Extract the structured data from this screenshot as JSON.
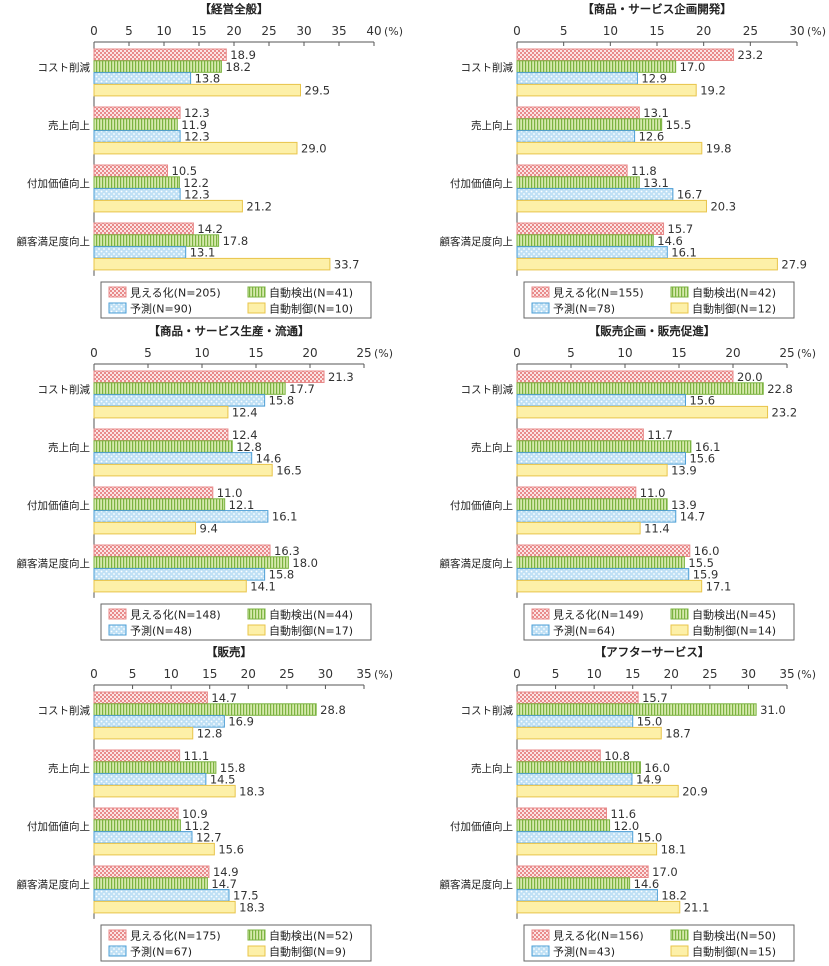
{
  "series_styles": {
    "mieruka": {
      "color": "#e88a8a",
      "fill": "#fbe4e4"
    },
    "kenshutsu": {
      "color": "#7bb340",
      "fill": "#d6e9ad"
    },
    "yosoku": {
      "color": "#4e9fd6",
      "fill": "#bfe0f5"
    },
    "seigyo": {
      "color": "#e8c44a",
      "fill": "#fdf0a8"
    }
  },
  "chart_data": [
    {
      "type": "bar",
      "title": "【経営全般】",
      "unit": "(%)",
      "xlim": [
        0,
        40
      ],
      "ticks": [
        0,
        5,
        10,
        15,
        20,
        25,
        30,
        35,
        40
      ],
      "categories": [
        "コスト削減",
        "売上向上",
        "付加価値向上",
        "顧客満足度向上"
      ],
      "series": [
        {
          "name": "見える化",
          "key": "mieruka",
          "n": "(N=205)",
          "values": [
            18.9,
            12.3,
            10.5,
            14.2
          ]
        },
        {
          "name": "自動検出",
          "key": "kenshutsu",
          "n": "(N=41)",
          "values": [
            18.2,
            11.9,
            12.2,
            17.8
          ]
        },
        {
          "name": "予測",
          "key": "yosoku",
          "n": "(N=90)",
          "values": [
            13.8,
            12.3,
            12.3,
            13.1
          ]
        },
        {
          "name": "自動制御",
          "key": "seigyo",
          "n": "(N=10)",
          "values": [
            29.5,
            29.0,
            21.2,
            33.7
          ]
        }
      ]
    },
    {
      "type": "bar",
      "title": "【商品・サービス企画開発】",
      "unit": "(%)",
      "xlim": [
        0,
        30
      ],
      "ticks": [
        0,
        5,
        10,
        15,
        20,
        25,
        30
      ],
      "categories": [
        "コスト削減",
        "売上向上",
        "付加価値向上",
        "顧客満足度向上"
      ],
      "series": [
        {
          "name": "見える化",
          "key": "mieruka",
          "n": "(N=155)",
          "values": [
            23.2,
            13.1,
            11.8,
            15.7
          ]
        },
        {
          "name": "自動検出",
          "key": "kenshutsu",
          "n": "(N=42)",
          "values": [
            17.0,
            15.5,
            13.1,
            14.6
          ]
        },
        {
          "name": "予測",
          "key": "yosoku",
          "n": "(N=78)",
          "values": [
            12.9,
            12.6,
            16.7,
            16.1
          ]
        },
        {
          "name": "自動制御",
          "key": "seigyo",
          "n": "(N=12)",
          "values": [
            19.2,
            19.8,
            20.3,
            27.9
          ]
        }
      ]
    },
    {
      "type": "bar",
      "title": "【商品・サービス生産・流通】",
      "unit": "(%)",
      "xlim": [
        0,
        25
      ],
      "ticks": [
        0,
        5,
        10,
        15,
        20,
        25
      ],
      "categories": [
        "コスト削減",
        "売上向上",
        "付加価値向上",
        "顧客満足度向上"
      ],
      "series": [
        {
          "name": "見える化",
          "key": "mieruka",
          "n": "(N=148)",
          "values": [
            21.3,
            12.4,
            11.0,
            16.3
          ]
        },
        {
          "name": "自動検出",
          "key": "kenshutsu",
          "n": "(N=44)",
          "values": [
            17.7,
            12.8,
            12.1,
            18.0
          ]
        },
        {
          "name": "予測",
          "key": "yosoku",
          "n": "(N=48)",
          "values": [
            15.8,
            14.6,
            16.1,
            15.8
          ]
        },
        {
          "name": "自動制御",
          "key": "seigyo",
          "n": "(N=17)",
          "values": [
            12.4,
            16.5,
            9.4,
            14.1
          ]
        }
      ]
    },
    {
      "type": "bar",
      "title": "【販売企画・販売促進】",
      "unit": "(%)",
      "xlim": [
        0,
        25
      ],
      "ticks": [
        0,
        5,
        10,
        15,
        20,
        25
      ],
      "categories": [
        "コスト削減",
        "売上向上",
        "付加価値向上",
        "顧客満足度向上"
      ],
      "series": [
        {
          "name": "見える化",
          "key": "mieruka",
          "n": "(N=149)",
          "values": [
            20.0,
            11.7,
            11.0,
            16.0
          ]
        },
        {
          "name": "自動検出",
          "key": "kenshutsu",
          "n": "(N=45)",
          "values": [
            22.8,
            16.1,
            13.9,
            15.5
          ]
        },
        {
          "name": "予測",
          "key": "yosoku",
          "n": "(N=64)",
          "values": [
            15.6,
            15.6,
            14.7,
            15.9
          ]
        },
        {
          "name": "自動制御",
          "key": "seigyo",
          "n": "(N=14)",
          "values": [
            23.2,
            13.9,
            11.4,
            17.1
          ]
        }
      ]
    },
    {
      "type": "bar",
      "title": "【販売】",
      "unit": "(%)",
      "xlim": [
        0,
        35
      ],
      "ticks": [
        0,
        5,
        10,
        15,
        20,
        25,
        30,
        35
      ],
      "categories": [
        "コスト削減",
        "売上向上",
        "付加価値向上",
        "顧客満足度向上"
      ],
      "series": [
        {
          "name": "見える化",
          "key": "mieruka",
          "n": "(N=175)",
          "values": [
            14.7,
            11.1,
            10.9,
            14.9
          ]
        },
        {
          "name": "自動検出",
          "key": "kenshutsu",
          "n": "(N=52)",
          "values": [
            28.8,
            15.8,
            11.2,
            14.7
          ]
        },
        {
          "name": "予測",
          "key": "yosoku",
          "n": "(N=67)",
          "values": [
            16.9,
            14.5,
            12.7,
            17.5
          ]
        },
        {
          "name": "自動制御",
          "key": "seigyo",
          "n": "(N=9)",
          "values": [
            12.8,
            18.3,
            15.6,
            18.3
          ]
        }
      ]
    },
    {
      "type": "bar",
      "title": "【アフターサービス】",
      "unit": "(%)",
      "xlim": [
        0,
        35
      ],
      "ticks": [
        0,
        5,
        10,
        15,
        20,
        25,
        30,
        35
      ],
      "categories": [
        "コスト削減",
        "売上向上",
        "付加価値向上",
        "顧客満足度向上"
      ],
      "series": [
        {
          "name": "見える化",
          "key": "mieruka",
          "n": "(N=156)",
          "values": [
            15.7,
            10.8,
            11.6,
            17.0
          ]
        },
        {
          "name": "自動検出",
          "key": "kenshutsu",
          "n": "(N=50)",
          "values": [
            31.0,
            16.0,
            12.0,
            14.6
          ]
        },
        {
          "name": "予測",
          "key": "yosoku",
          "n": "(N=43)",
          "values": [
            15.0,
            14.9,
            15.0,
            18.2
          ]
        },
        {
          "name": "自動制御",
          "key": "seigyo",
          "n": "(N=15)",
          "values": [
            18.7,
            20.9,
            18.1,
            21.1
          ]
        }
      ]
    }
  ]
}
